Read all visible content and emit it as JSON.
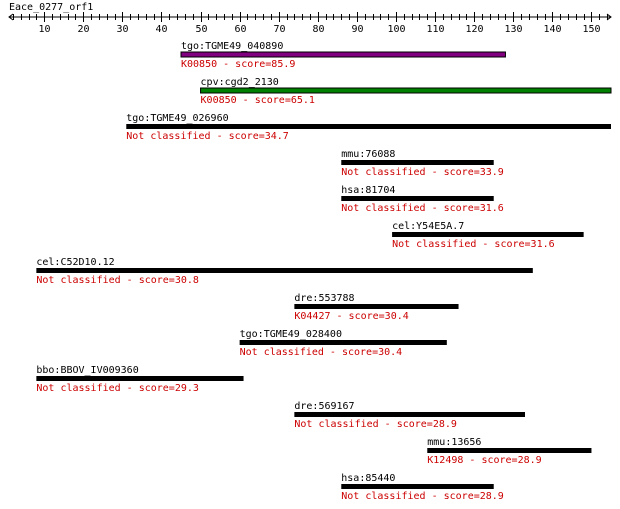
{
  "query": {
    "name": "Eace_0277_orf1",
    "length": 155
  },
  "ruler": {
    "ticks": [
      "10",
      "20",
      "30",
      "40",
      "50",
      "60",
      "70",
      "80",
      "90",
      "100",
      "110",
      "120",
      "130",
      "140",
      "150"
    ]
  },
  "hits": [
    {
      "name": "tgo:TGME49_040890",
      "label": "K00850 - score=85.9",
      "start": 45,
      "end": 128,
      "bar_color": "#800080"
    },
    {
      "name": "cpv:cgd2_2130",
      "label": "K00850 - score=65.1",
      "start": 50,
      "end": 155,
      "bar_color": "#008000"
    },
    {
      "name": "tgo:TGME49_026960",
      "label": "Not classified - score=34.7",
      "start": 31,
      "end": 155,
      "bar_color": "#000000"
    },
    {
      "name": "mmu:76088",
      "label": "Not classified - score=33.9",
      "start": 86,
      "end": 125,
      "bar_color": "#000000"
    },
    {
      "name": "hsa:81704",
      "label": "Not classified - score=31.6",
      "start": 86,
      "end": 125,
      "bar_color": "#000000"
    },
    {
      "name": "cel:Y54E5A.7",
      "label": "Not classified - score=31.6",
      "start": 99,
      "end": 148,
      "bar_color": "#000000"
    },
    {
      "name": "cel:C52D10.12",
      "label": "Not classified - score=30.8",
      "start": 8,
      "end": 135,
      "bar_color": "#000000"
    },
    {
      "name": "dre:553788",
      "label": "K04427 - score=30.4",
      "start": 74,
      "end": 116,
      "bar_color": "#000000"
    },
    {
      "name": "tgo:TGME49_028400",
      "label": "Not classified - score=30.4",
      "start": 60,
      "end": 113,
      "bar_color": "#000000"
    },
    {
      "name": "bbo:BBOV_IV009360",
      "label": "Not classified - score=29.3",
      "start": 8,
      "end": 61,
      "bar_color": "#000000"
    },
    {
      "name": "dre:569167",
      "label": "Not classified - score=28.9",
      "start": 74,
      "end": 133,
      "bar_color": "#000000"
    },
    {
      "name": "mmu:13656",
      "label": "K12498 - score=28.9",
      "start": 108,
      "end": 150,
      "bar_color": "#000000"
    },
    {
      "name": "hsa:85440",
      "label": "Not classified - score=28.9",
      "start": 86,
      "end": 125,
      "bar_color": "#000000"
    }
  ],
  "colors": {
    "name_text": "#000000",
    "label_text": "#cc0000",
    "ruler": "#000000"
  }
}
